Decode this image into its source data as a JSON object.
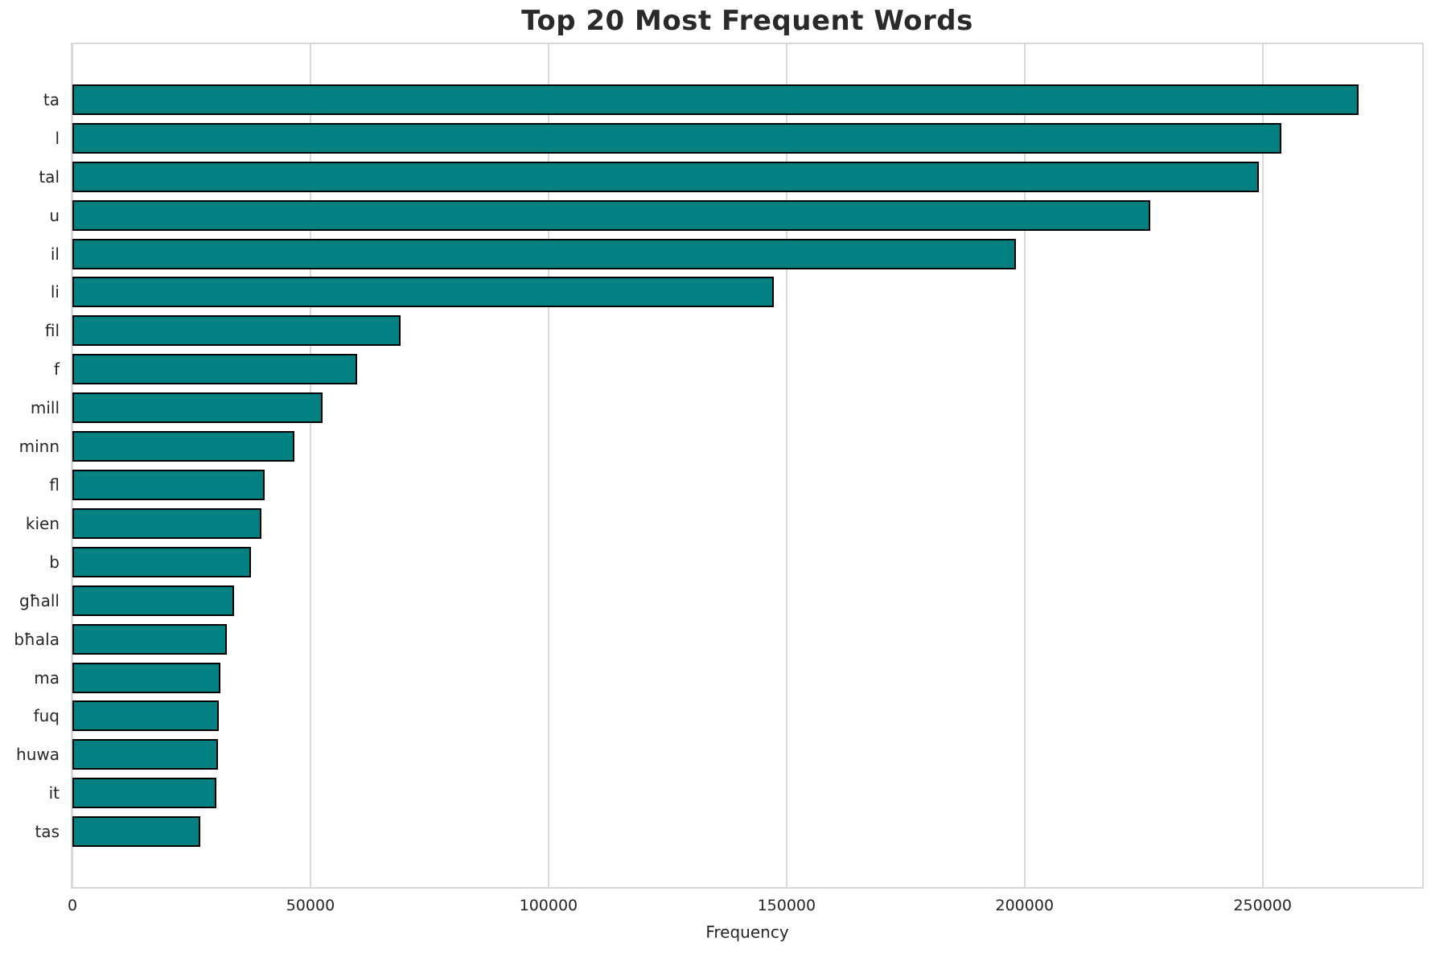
{
  "figure": {
    "title": "Top 20 Most Frequent Words",
    "xlabel": "Frequency"
  },
  "chart_data": {
    "type": "bar",
    "orientation": "horizontal",
    "title": "Top 20 Most Frequent Words",
    "xlabel": "Frequency",
    "ylabel": "",
    "categories": [
      "ta",
      "l",
      "tal",
      "u",
      "il",
      "li",
      "fil",
      "f",
      "mill",
      "minn",
      "fl",
      "kien",
      "b",
      "għall",
      "bħala",
      "ma",
      "fuq",
      "huwa",
      "it",
      "tas"
    ],
    "values": [
      270100,
      253900,
      249200,
      226400,
      198200,
      147300,
      69000,
      59800,
      52600,
      46600,
      40400,
      39700,
      37500,
      33900,
      32500,
      31100,
      30800,
      30500,
      30200,
      26800
    ],
    "xticks": [
      0,
      50000,
      100000,
      150000,
      200000,
      250000
    ],
    "xlim": [
      0,
      283500
    ],
    "grid": true,
    "legend": false,
    "bars_sorted_descending": true,
    "bar_color": "#008080",
    "bar_edge_color": "#000000",
    "grid_color": "#d9d9d9",
    "text_color": "#262626"
  }
}
